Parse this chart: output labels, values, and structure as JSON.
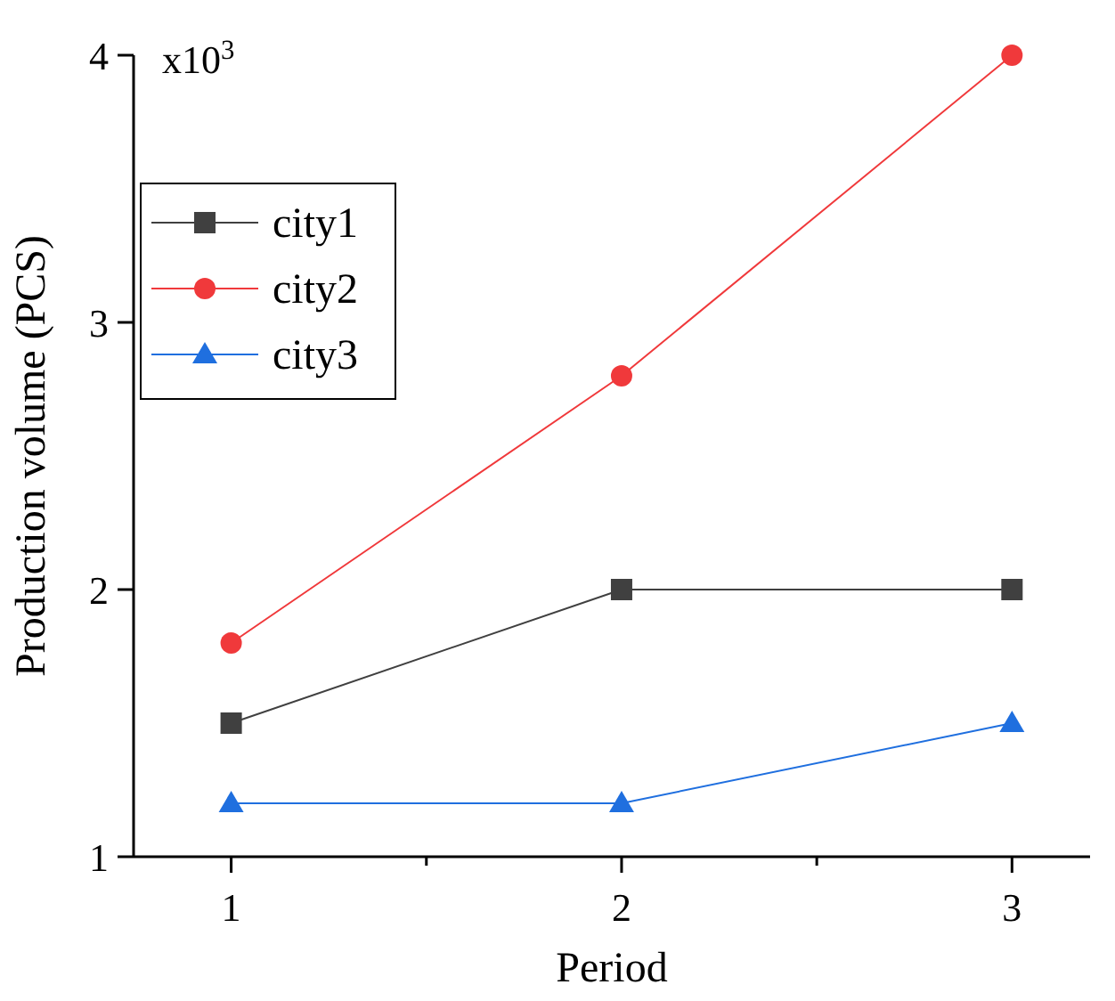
{
  "chart_data": {
    "type": "line",
    "xlabel": "Period",
    "ylabel": "Production volume (PCS)",
    "annotations": [
      "x10$^{3}$"
    ],
    "x": [
      1,
      2,
      3
    ],
    "xlim": [
      0.75,
      3.2
    ],
    "xticks": [
      1,
      {
        "value": 1.5,
        "label": null
      },
      2,
      {
        "value": 2.5,
        "label": null
      },
      3
    ],
    "ylim": [
      1,
      4
    ],
    "yticks": [
      1,
      2,
      3,
      4
    ],
    "legend": "top left",
    "line_style": "solid",
    "series": [
      {
        "name": "city1",
        "color": "#404040",
        "marker": "square",
        "values": [
          1.5,
          2,
          2
        ]
      },
      {
        "name": "city2",
        "color": "#f0393b",
        "marker": "circle",
        "values": [
          1.8,
          2.8,
          4
        ]
      },
      {
        "name": "city3",
        "color": "#1f6fdf",
        "marker": "triangle",
        "values": [
          1.2,
          1.2,
          1.5
        ]
      }
    ]
  }
}
